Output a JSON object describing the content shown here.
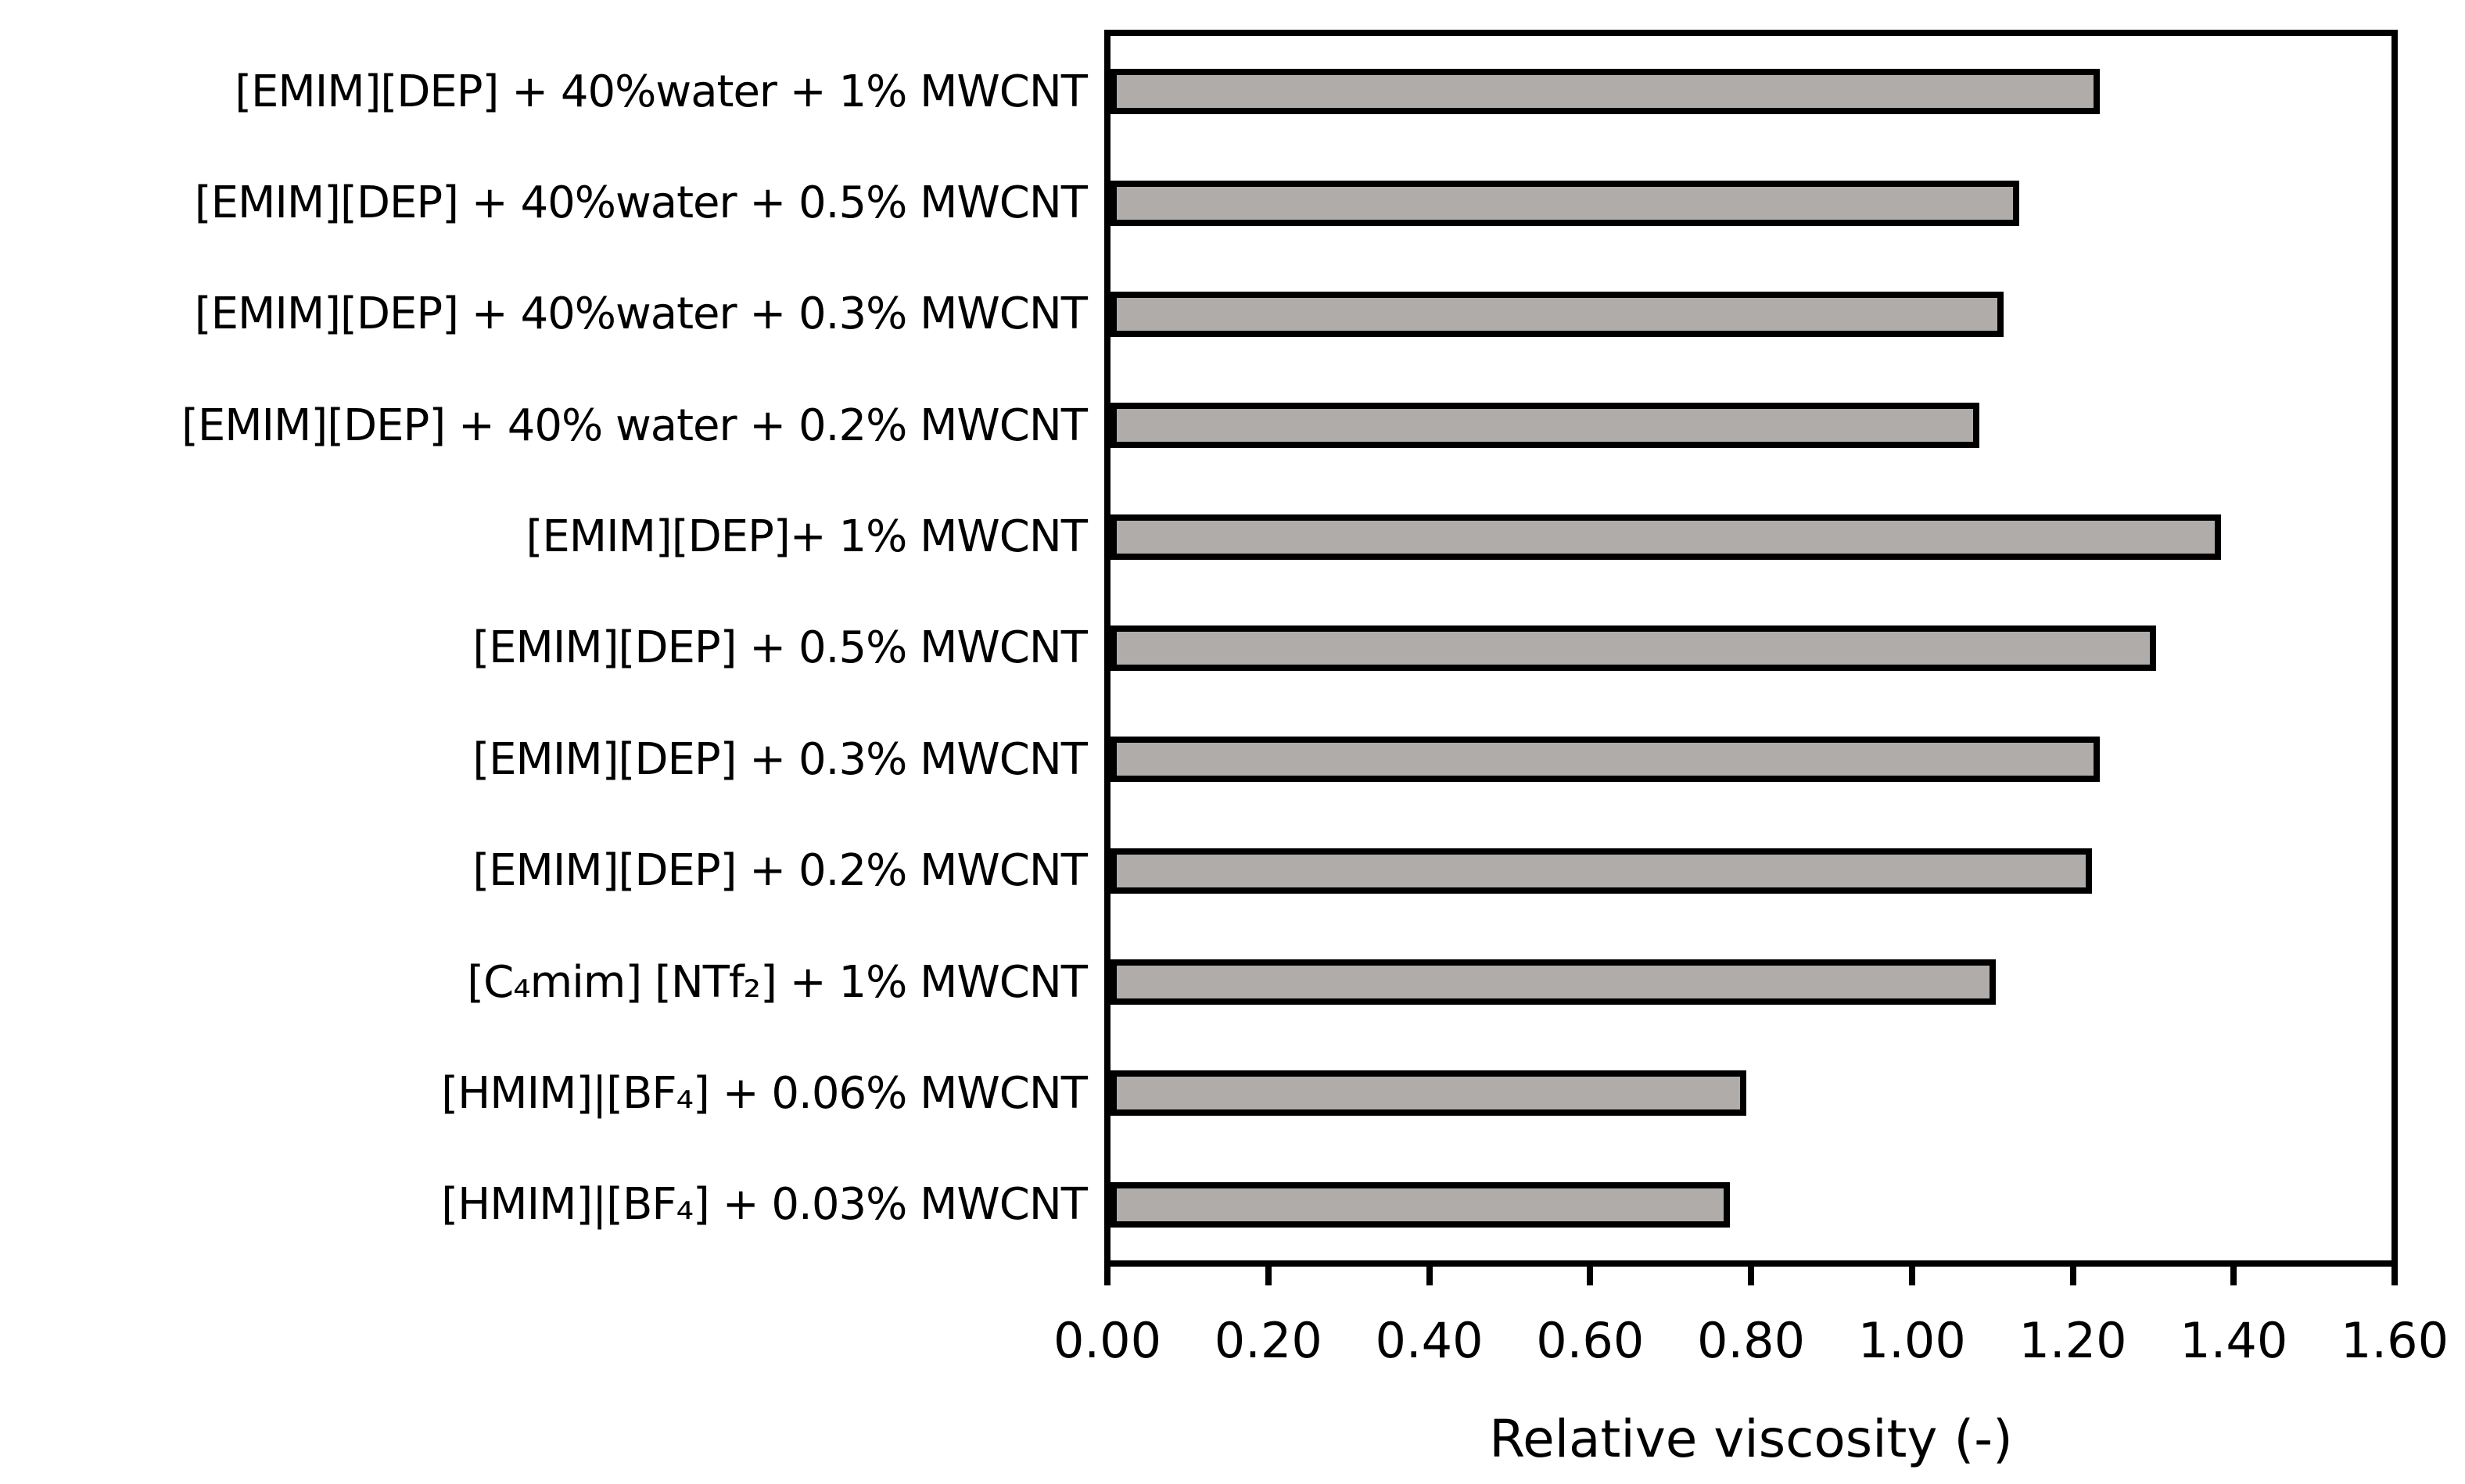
{
  "chart_data": {
    "type": "bar",
    "orientation": "horizontal",
    "title": "",
    "xlabel": "Relative viscosity (-)",
    "ylabel": "",
    "xlim": [
      0.0,
      1.6
    ],
    "xtick_step": 0.2,
    "xtick_labels": [
      "0.00",
      "0.20",
      "0.40",
      "0.60",
      "0.80",
      "1.00",
      "1.20",
      "1.40",
      "1.60"
    ],
    "grid": false,
    "legend": false,
    "categories": [
      "[EMIM][DEP] + 40%water + 1% MWCNT",
      "[EMIM][DEP] + 40%water + 0.5% MWCNT",
      "[EMIM][DEP] + 40%water + 0.3% MWCNT",
      "[EMIM][DEP] + 40% water + 0.2% MWCNT",
      "[EMIM][DEP]+ 1% MWCNT",
      "[EMIM][DEP] + 0.5% MWCNT",
      "[EMIM][DEP] + 0.3% MWCNT",
      "[EMIM][DEP] + 0.2% MWCNT",
      "[C₄mim] [NTf₂] + 1% MWCNT",
      "[HMIM]|[BF₄] + 0.06% MWCNT",
      "[HMIM]|[BF₄] + 0.03% MWCNT"
    ],
    "values": [
      1.23,
      1.13,
      1.11,
      1.08,
      1.38,
      1.3,
      1.23,
      1.22,
      1.1,
      0.79,
      0.77
    ],
    "colors": {
      "bar_fill": "#b0acaa",
      "bar_border": "#000000",
      "axis": "#000000",
      "background": "#ffffff",
      "text": "#000000"
    }
  }
}
